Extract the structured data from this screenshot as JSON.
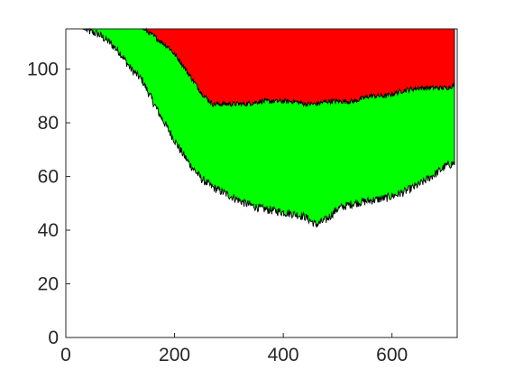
{
  "chart_data": {
    "type": "area",
    "stacked": true,
    "title": "",
    "xlabel": "",
    "ylabel": "",
    "xlim": [
      0,
      720
    ],
    "ylim": [
      0,
      115
    ],
    "grid": false,
    "legend": "none",
    "x_ticks": [
      0,
      200,
      400,
      600
    ],
    "y_ticks": [
      0,
      20,
      40,
      60,
      80,
      100
    ],
    "x": [
      0,
      30,
      60,
      80,
      100,
      120,
      140,
      150,
      170,
      190,
      210,
      230,
      250,
      270,
      300,
      330,
      360,
      390,
      420,
      440,
      460,
      480,
      500,
      530,
      560,
      590,
      620,
      650,
      680,
      700,
      715
    ],
    "series": [
      {
        "color": "#ffffff",
        "values": [
          115,
          115,
          113,
          110,
          106,
          100,
          96,
          92,
          84,
          77,
          70,
          64,
          59,
          56,
          53,
          50,
          48,
          47,
          46,
          45,
          42,
          44,
          48,
          50,
          51,
          52,
          54,
          57,
          61,
          64,
          65
        ]
      },
      {
        "color": "#00ff00",
        "values": [
          0,
          0,
          2,
          5,
          9,
          15,
          19,
          22,
          27,
          31,
          33,
          33,
          32,
          31,
          34,
          37,
          40,
          41,
          42,
          42,
          45,
          44,
          40,
          38,
          39,
          38,
          38,
          36,
          32,
          29,
          29
        ]
      },
      {
        "color": "#ff0000",
        "values": [
          0,
          0,
          0,
          0,
          0,
          0,
          0,
          1,
          4,
          7,
          12,
          18,
          24,
          28,
          28,
          28,
          27,
          27,
          27,
          28,
          28,
          27,
          27,
          27,
          25,
          25,
          23,
          22,
          22,
          22,
          21
        ]
      }
    ]
  }
}
